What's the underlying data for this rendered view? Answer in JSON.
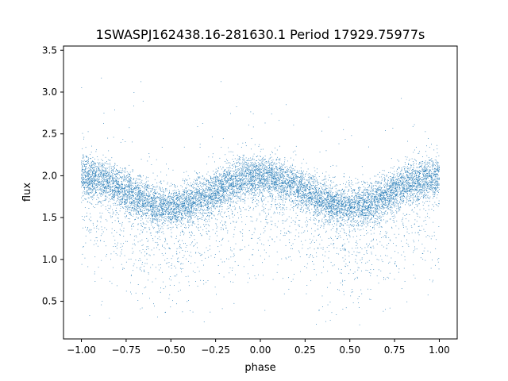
{
  "chart_data": {
    "type": "scatter",
    "title": "1SWASPJ162438.16-281630.1 Period 17929.75977s",
    "xlabel": "phase",
    "ylabel": "flux",
    "xlim": [
      -1.1,
      1.1
    ],
    "ylim": [
      0.05,
      3.55
    ],
    "x_ticks": [
      -1.0,
      -0.75,
      -0.5,
      -0.25,
      0.0,
      0.25,
      0.5,
      0.75,
      1.0
    ],
    "x_tick_labels": [
      "−1.00",
      "−0.75",
      "−0.50",
      "−0.25",
      "0.00",
      "0.25",
      "0.50",
      "0.75",
      "1.00"
    ],
    "y_ticks": [
      0.5,
      1.0,
      1.5,
      2.0,
      2.5,
      3.0,
      3.5
    ],
    "y_tick_labels": [
      "0.5",
      "1.0",
      "1.5",
      "2.0",
      "2.5",
      "3.0",
      "3.5"
    ],
    "grid": false,
    "legend": "none",
    "marker_color": "#1f77b4",
    "series": [
      {
        "phase_range": [
          -1.0,
          1.0
        ],
        "baseline_flux": 1.82,
        "semi_amplitude": 0.18,
        "max_flux_phase": [
          -1.0,
          0.0,
          1.0
        ],
        "min_flux_phase": [
          -0.5,
          0.5
        ],
        "scatter_sigma": 0.12,
        "approx_points": 12000
      }
    ]
  }
}
